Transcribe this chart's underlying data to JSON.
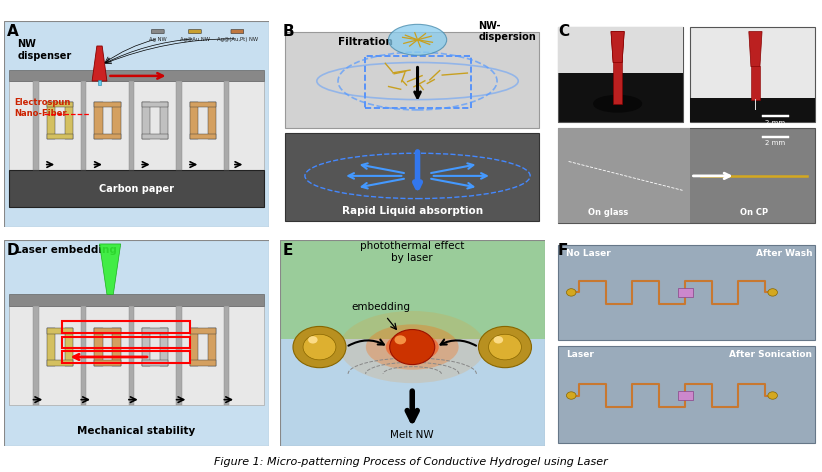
{
  "figure_title": "Figure 1: Micro-patterning Process of Conductive Hydrogel using Laser",
  "panel_labels": [
    "A",
    "B",
    "C",
    "D",
    "E",
    "F"
  ],
  "panel_A": {
    "bg_top": "#c8dff0",
    "bg_fiber": "#e8e8e8",
    "bg_carbon": "#4a4a4a",
    "dispenser_bar": "#8a8a8a",
    "label_nw": "NW\ndispenser",
    "label_fiber": "Electrospun\nNano-Fiber",
    "label_carbon": "Carbon paper",
    "nw_labels": [
      "Ag NW",
      "Ag@Au NW",
      "Ag@(Au,Pt) NW"
    ],
    "nw_colors": [
      "#888888",
      "#c8a030",
      "#c07840"
    ]
  },
  "panel_B": {
    "membrane_color": "#d0d0d0",
    "bottom_color": "#505050",
    "label_filtration": "Filtration",
    "label_nw_disp": "NW-\ndispersion",
    "label_rapid": "Rapid Liquid absorption"
  },
  "panel_C": {
    "label_2mm_top": "2 mm",
    "label_2mm_bot": "2 mm",
    "label_glass": "On glass",
    "label_cp": "On CP"
  },
  "panel_D": {
    "bg_top": "#c8dff0",
    "bg_fiber": "#e8e8e8",
    "label_laser": "Laser embedding",
    "label_mech": "Mechanical stability"
  },
  "panel_E": {
    "bg_top_color": "#a8d8a8",
    "bg_mid_color": "#b8d8e8",
    "label_photo": "photothermal effect\nby laser",
    "label_embed": "embedding",
    "label_melt": "Melt NW"
  },
  "panel_F": {
    "bg_color": "#9aabbb",
    "label1": "No Laser",
    "label2": "After Wash",
    "label3": "Laser",
    "label4": "After Sonication",
    "wire_color": "#c87830"
  }
}
